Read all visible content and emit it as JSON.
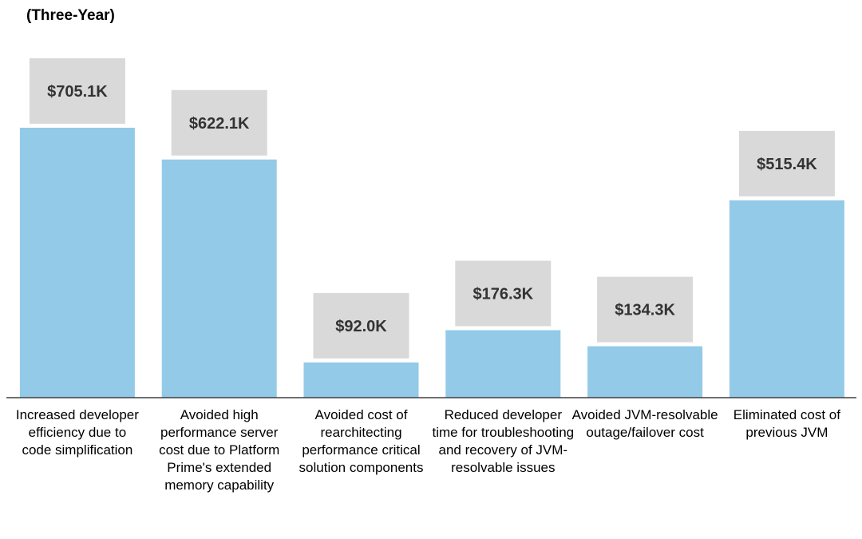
{
  "chart_data": {
    "type": "bar",
    "title": "(Three-Year)",
    "categories": [
      "Increased developer efficiency due to code simplification",
      "Avoided high performance server cost due to Platform Prime's extended memory capability",
      "Avoided cost of rearchitecting performance critical solution components",
      "Reduced developer time for troubleshooting and recovery of JVM-resolvable issues",
      "Avoided JVM-resolvable outage/failover cost",
      "Eliminated cost of previous JVM"
    ],
    "values": [
      705.1,
      622.1,
      92.0,
      176.3,
      134.3,
      515.4
    ],
    "data_labels": [
      "$705.1K",
      "$622.1K",
      "$92.0K",
      "$176.3K",
      "$134.3K",
      "$515.4K"
    ],
    "xlabel": "",
    "ylabel": "",
    "grid": false,
    "colors": {
      "bar": "#93CAE8",
      "label_box": "#D9D9D9",
      "axis": "#404040"
    }
  }
}
